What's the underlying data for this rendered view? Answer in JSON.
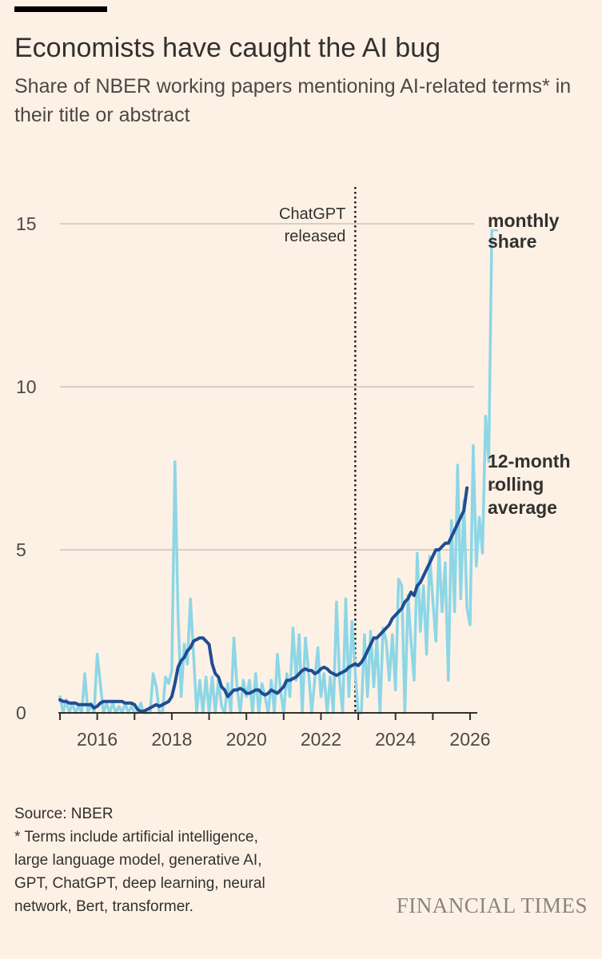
{
  "header": {
    "title": "Economists have caught the AI bug",
    "subtitle": "Share of NBER working papers mentioning AI-related terms* in their title or abstract"
  },
  "footer": {
    "source": "Source: NBER",
    "note_lines": [
      "* Terms include artificial intelligence,",
      "large language model, generative AI,",
      "GPT, ChatGPT, deep learning, neural",
      "network, Bert, transformer."
    ],
    "brand": "FINANCIAL TIMES"
  },
  "colors": {
    "background": "#fdf1e6",
    "monthly": "#8dd6e6",
    "rolling": "#1f4d92",
    "grid": "#ccc3ba",
    "annotation_line": "#1a1a1a"
  },
  "chart_data": {
    "type": "line",
    "title": "Economists have caught the AI bug",
    "subtitle": "Share of NBER working papers mentioning AI-related terms* in their title or abstract",
    "xlabel": "",
    "ylabel": "",
    "xlim": [
      2015.0,
      2026.15
    ],
    "ylim": [
      0,
      15
    ],
    "x_ticks": [
      2016,
      2018,
      2020,
      2022,
      2024,
      2026
    ],
    "y_ticks": [
      0,
      5,
      10,
      15
    ],
    "grid": true,
    "annotation": {
      "x": 2022.92,
      "label_lines": [
        "ChatGPT",
        "released"
      ]
    },
    "series": [
      {
        "name": "monthly share",
        "label_lines": [
          "monthly",
          "share"
        ],
        "x_start": 2015.0,
        "step": 0.08333,
        "values": [
          0.5,
          0.0,
          0.4,
          0.0,
          0.3,
          0.0,
          0.2,
          0.0,
          1.2,
          0.0,
          0.3,
          0.0,
          1.8,
          0.9,
          0.0,
          0.3,
          0.0,
          0.3,
          0.0,
          0.2,
          0.0,
          0.3,
          0.0,
          0.2,
          0.0,
          0.0,
          0.3,
          0.0,
          0.0,
          0.0,
          1.2,
          0.8,
          0.0,
          0.0,
          1.1,
          0.9,
          1.3,
          7.7,
          3.0,
          0.5,
          2.1,
          1.5,
          3.5,
          1.8,
          0.0,
          1.0,
          0.0,
          1.1,
          0.0,
          1.1,
          0.0,
          1.0,
          0.2,
          0.0,
          0.9,
          0.0,
          2.3,
          0.8,
          0.0,
          1.0,
          0.5,
          1.0,
          0.0,
          1.2,
          0.0,
          0.9,
          0.5,
          0.0,
          1.0,
          0.0,
          1.8,
          0.7,
          0.0,
          1.2,
          0.5,
          2.6,
          1.0,
          2.4,
          0.0,
          2.3,
          1.3,
          0.0,
          1.0,
          2.0,
          0.5,
          1.2,
          0.0,
          1.1,
          0.0,
          3.4,
          1.0,
          0.0,
          3.5,
          0.5,
          2.8,
          1.3,
          0.0,
          0.0,
          2.4,
          0.5,
          2.5,
          0.8,
          2.3,
          0.0,
          2.6,
          2.2,
          1.0,
          2.4,
          0.7,
          4.1,
          3.9,
          0.0,
          3.6,
          2.2,
          1.0,
          4.9,
          2.5,
          3.9,
          1.8,
          4.8,
          3.5,
          2.2,
          5.0,
          3.1,
          4.6,
          1.0,
          5.9,
          3.1,
          7.6,
          3.5,
          6.5,
          3.2,
          2.7,
          8.2,
          4.5,
          6.0,
          4.9,
          9.1,
          7.7,
          14.8
        ]
      },
      {
        "name": "12-month rolling average",
        "label_lines": [
          "12-month",
          "rolling",
          "average"
        ],
        "x_start": 2015.0,
        "step": 0.08333,
        "values": [
          0.4,
          0.35,
          0.35,
          0.3,
          0.3,
          0.3,
          0.25,
          0.25,
          0.25,
          0.25,
          0.25,
          0.15,
          0.2,
          0.3,
          0.35,
          0.35,
          0.35,
          0.35,
          0.35,
          0.35,
          0.35,
          0.3,
          0.3,
          0.3,
          0.25,
          0.1,
          0.05,
          0.05,
          0.1,
          0.15,
          0.2,
          0.25,
          0.2,
          0.25,
          0.3,
          0.35,
          0.5,
          0.9,
          1.4,
          1.6,
          1.7,
          1.9,
          2.0,
          2.2,
          2.25,
          2.3,
          2.3,
          2.2,
          2.1,
          1.5,
          1.2,
          1.1,
          0.8,
          0.7,
          0.5,
          0.6,
          0.7,
          0.7,
          0.75,
          0.7,
          0.6,
          0.6,
          0.65,
          0.7,
          0.7,
          0.6,
          0.55,
          0.6,
          0.7,
          0.65,
          0.6,
          0.7,
          0.8,
          1.0,
          1.0,
          1.05,
          1.1,
          1.2,
          1.3,
          1.35,
          1.3,
          1.3,
          1.2,
          1.25,
          1.35,
          1.4,
          1.35,
          1.25,
          1.2,
          1.15,
          1.2,
          1.25,
          1.3,
          1.4,
          1.45,
          1.5,
          1.45,
          1.55,
          1.7,
          1.9,
          2.1,
          2.3,
          2.3,
          2.4,
          2.5,
          2.6,
          2.7,
          2.9,
          3.0,
          3.1,
          3.2,
          3.4,
          3.5,
          3.7,
          3.6,
          3.9,
          4.0,
          4.2,
          4.4,
          4.6,
          4.8,
          5.0,
          5.0,
          5.1,
          5.2,
          5.2,
          5.4,
          5.6,
          5.8,
          6.0,
          6.2,
          6.9
        ]
      }
    ]
  }
}
